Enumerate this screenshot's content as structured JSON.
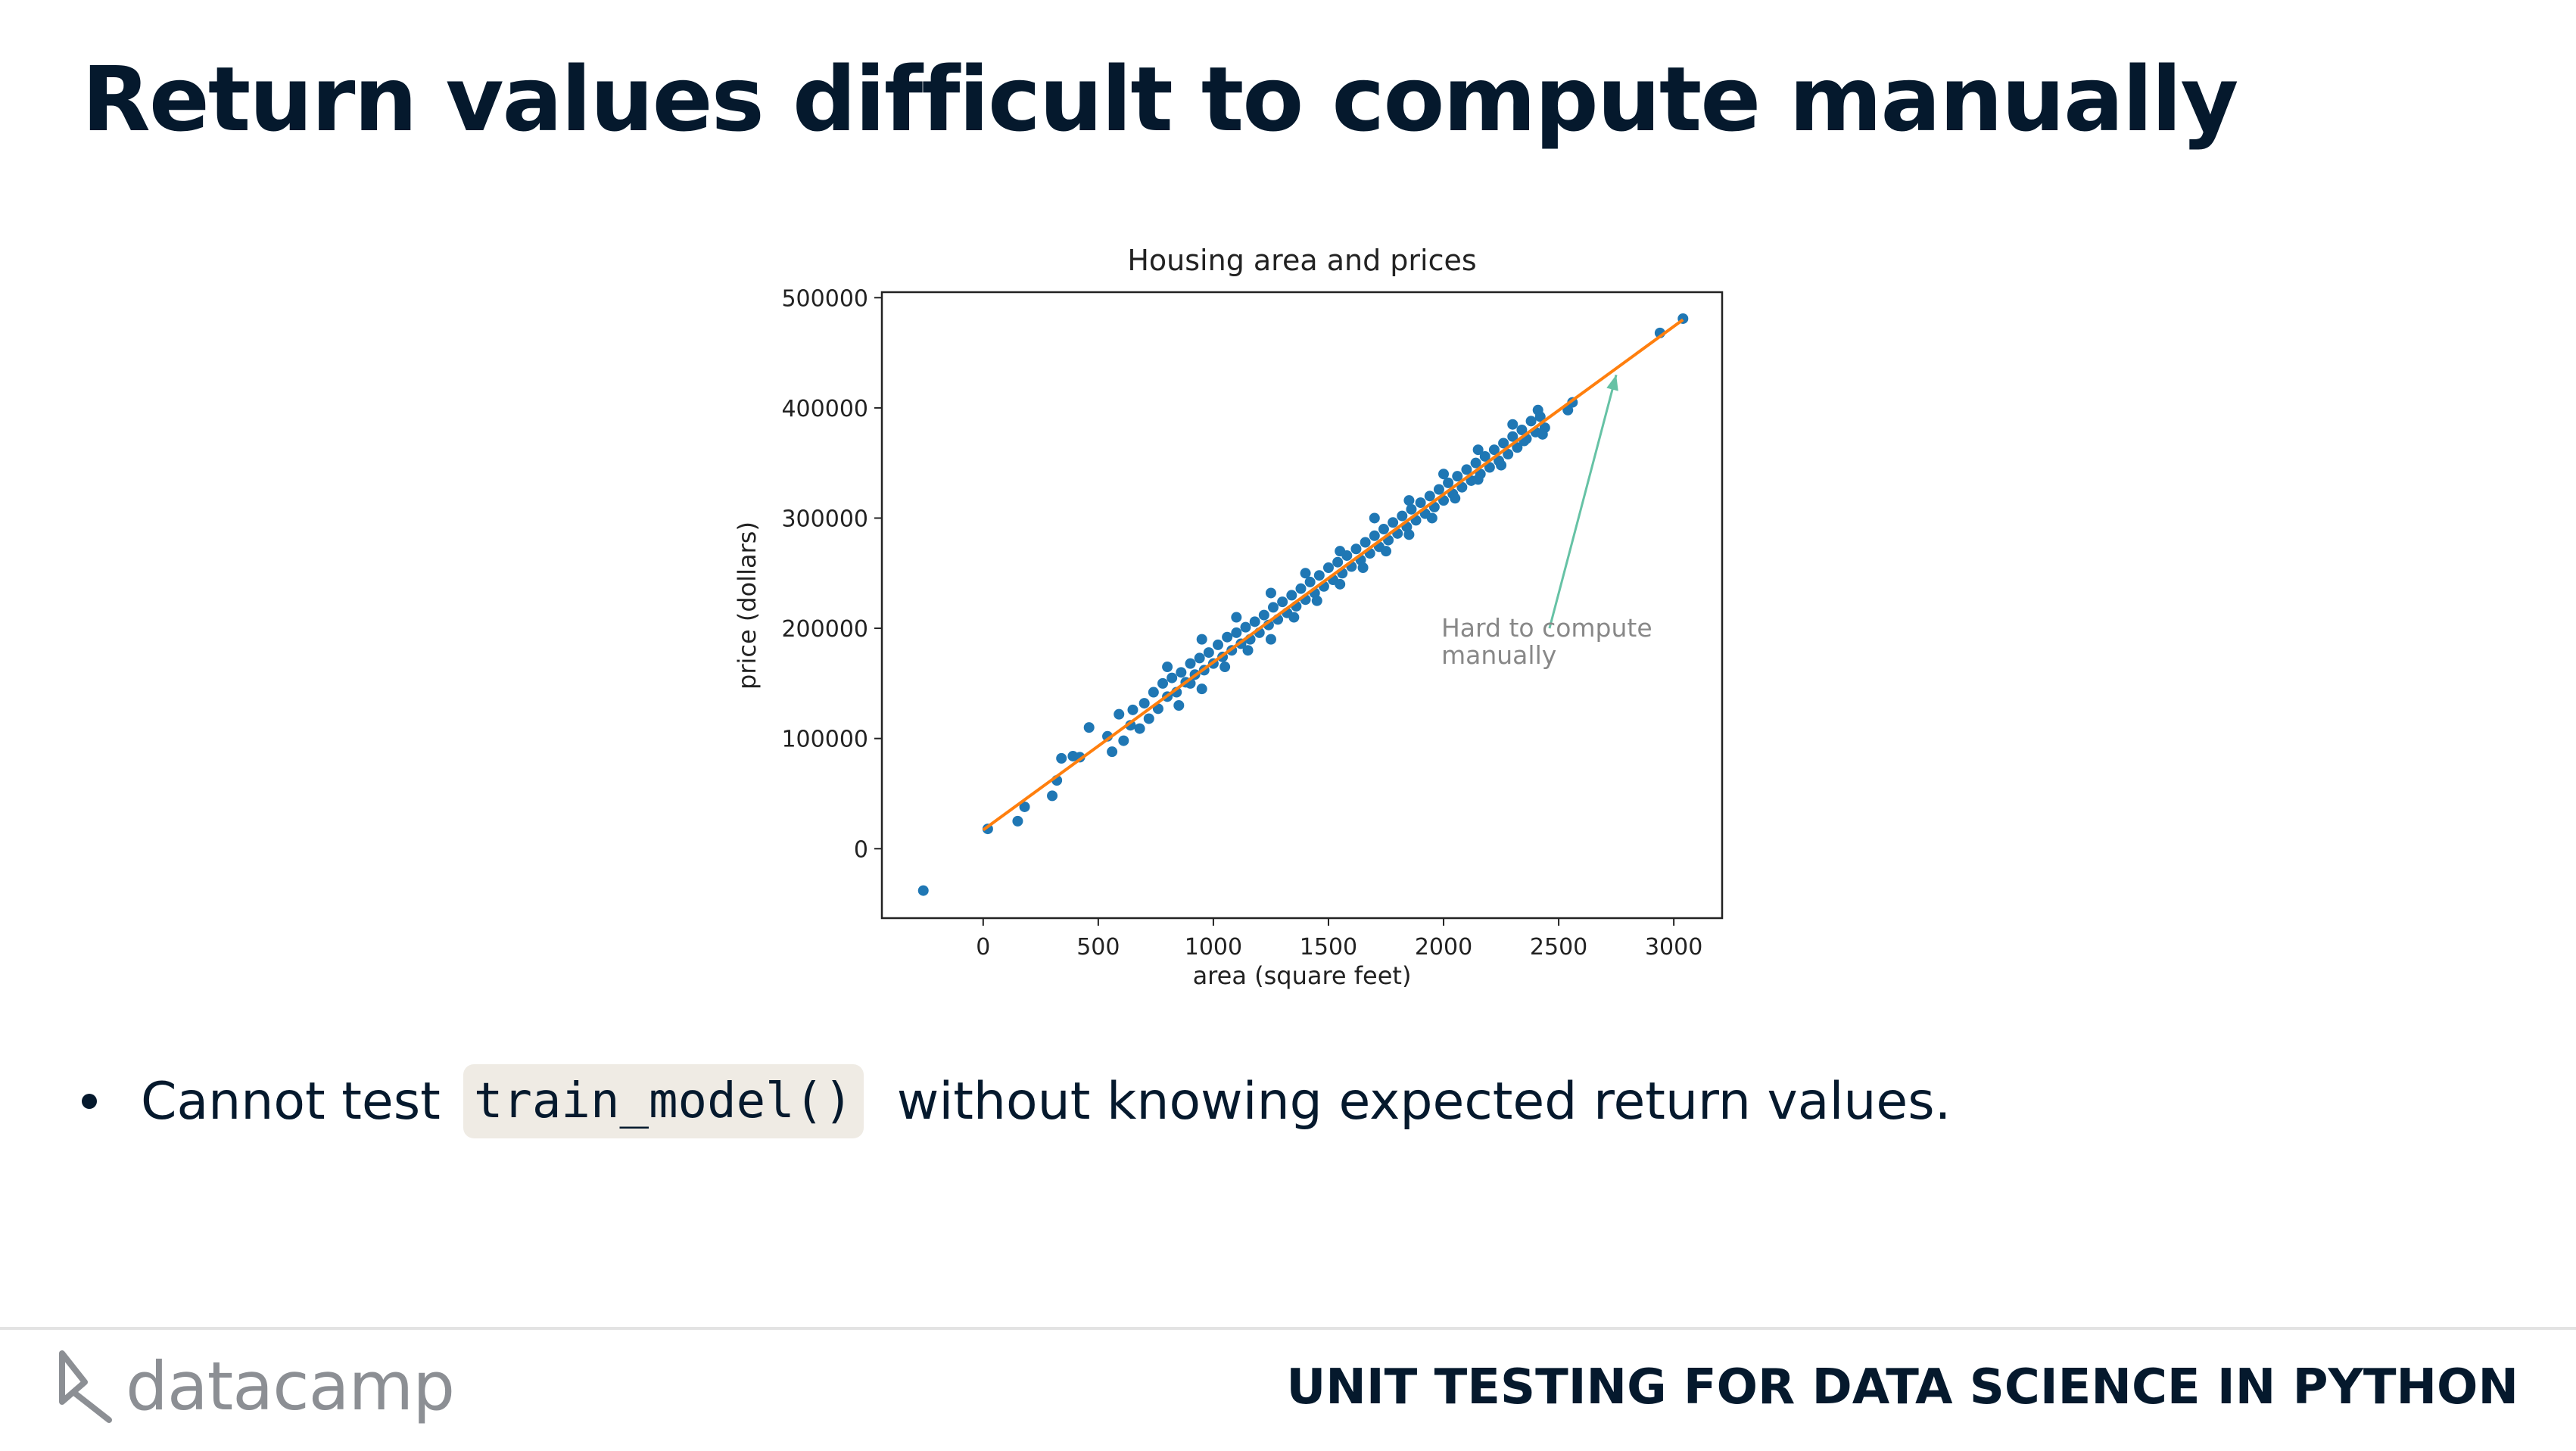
{
  "slide": {
    "title": "Return values difficult to compute manually",
    "bullet_prefix": "Cannot test",
    "bullet_code": "train_model()",
    "bullet_suffix": "without knowing expected return values."
  },
  "footer": {
    "logo_text": "datacamp",
    "course_name": "UNIT TESTING FOR DATA SCIENCE IN PYTHON"
  },
  "colors": {
    "text": "#05192d",
    "scatter": "#1f77b4",
    "fit_line": "#ff7f0e",
    "arrow": "#66c2a5",
    "code_bg": "#efebe4"
  },
  "chart_data": {
    "type": "scatter",
    "title": "Housing area and prices",
    "xlabel": "area (square feet)",
    "ylabel": "price (dollars)",
    "xlim": [
      -440,
      3210
    ],
    "ylim": [
      -63000,
      505000
    ],
    "xticks": [
      0,
      500,
      1000,
      1500,
      2000,
      2500,
      3000
    ],
    "yticks": [
      0,
      100000,
      200000,
      300000,
      400000,
      500000
    ],
    "grid": false,
    "fit_line": {
      "x": [
        0,
        3040
      ],
      "y": [
        17000,
        480000
      ]
    },
    "annotation": {
      "text_lines": [
        "Hard to compute",
        "manually"
      ],
      "text_xy": [
        1990,
        165000
      ],
      "arrow_to": [
        2750,
        430000
      ]
    },
    "series": [
      {
        "points": [
          [
            -260,
            -38000
          ],
          [
            20,
            18000
          ],
          [
            150,
            25000
          ],
          [
            180,
            38000
          ],
          [
            300,
            48000
          ],
          [
            320,
            62000
          ],
          [
            340,
            82000
          ],
          [
            390,
            84000
          ],
          [
            420,
            83000
          ],
          [
            460,
            110000
          ],
          [
            540,
            102000
          ],
          [
            560,
            88000
          ],
          [
            590,
            122000
          ],
          [
            610,
            98000
          ],
          [
            640,
            112000
          ],
          [
            650,
            126000
          ],
          [
            680,
            109000
          ],
          [
            700,
            132000
          ],
          [
            720,
            118000
          ],
          [
            740,
            142000
          ],
          [
            760,
            127000
          ],
          [
            780,
            150000
          ],
          [
            800,
            138000
          ],
          [
            820,
            155000
          ],
          [
            840,
            142000
          ],
          [
            860,
            160000
          ],
          [
            880,
            151000
          ],
          [
            900,
            168000
          ],
          [
            920,
            158000
          ],
          [
            940,
            173000
          ],
          [
            960,
            162000
          ],
          [
            980,
            178000
          ],
          [
            1000,
            168000
          ],
          [
            1020,
            185000
          ],
          [
            1040,
            174000
          ],
          [
            1060,
            192000
          ],
          [
            1080,
            180000
          ],
          [
            1100,
            196000
          ],
          [
            1120,
            186000
          ],
          [
            1140,
            201000
          ],
          [
            1160,
            190000
          ],
          [
            1180,
            206000
          ],
          [
            1200,
            196000
          ],
          [
            1220,
            212000
          ],
          [
            1240,
            203000
          ],
          [
            1260,
            219000
          ],
          [
            1280,
            208000
          ],
          [
            1300,
            224000
          ],
          [
            1320,
            214000
          ],
          [
            1340,
            230000
          ],
          [
            1360,
            220000
          ],
          [
            1380,
            236000
          ],
          [
            1400,
            226000
          ],
          [
            1420,
            242000
          ],
          [
            1440,
            232000
          ],
          [
            1460,
            248000
          ],
          [
            1480,
            238000
          ],
          [
            1500,
            255000
          ],
          [
            1520,
            244000
          ],
          [
            1540,
            260000
          ],
          [
            1560,
            250000
          ],
          [
            1580,
            266000
          ],
          [
            1600,
            256000
          ],
          [
            1620,
            272000
          ],
          [
            1640,
            262000
          ],
          [
            1660,
            278000
          ],
          [
            1680,
            268000
          ],
          [
            1700,
            284000
          ],
          [
            1720,
            274000
          ],
          [
            1740,
            290000
          ],
          [
            1760,
            280000
          ],
          [
            1780,
            296000
          ],
          [
            1800,
            286000
          ],
          [
            1820,
            302000
          ],
          [
            1840,
            292000
          ],
          [
            1860,
            308000
          ],
          [
            1880,
            298000
          ],
          [
            1900,
            314000
          ],
          [
            1920,
            304000
          ],
          [
            1940,
            320000
          ],
          [
            1960,
            310000
          ],
          [
            1980,
            326000
          ],
          [
            2000,
            316000
          ],
          [
            2020,
            332000
          ],
          [
            2040,
            322000
          ],
          [
            2060,
            338000
          ],
          [
            2080,
            328000
          ],
          [
            2100,
            344000
          ],
          [
            2120,
            334000
          ],
          [
            2140,
            350000
          ],
          [
            2160,
            340000
          ],
          [
            2180,
            356000
          ],
          [
            2200,
            346000
          ],
          [
            2220,
            362000
          ],
          [
            2240,
            352000
          ],
          [
            2260,
            368000
          ],
          [
            2280,
            358000
          ],
          [
            2300,
            374000
          ],
          [
            2320,
            364000
          ],
          [
            2340,
            380000
          ],
          [
            2360,
            372000
          ],
          [
            2380,
            388000
          ],
          [
            2400,
            378000
          ],
          [
            2420,
            392000
          ],
          [
            2440,
            382000
          ],
          [
            850,
            130000
          ],
          [
            900,
            150000
          ],
          [
            950,
            145000
          ],
          [
            1050,
            165000
          ],
          [
            1150,
            180000
          ],
          [
            1250,
            190000
          ],
          [
            1350,
            210000
          ],
          [
            1450,
            225000
          ],
          [
            1550,
            240000
          ],
          [
            1650,
            255000
          ],
          [
            1750,
            270000
          ],
          [
            1850,
            285000
          ],
          [
            1950,
            300000
          ],
          [
            2050,
            318000
          ],
          [
            2150,
            335000
          ],
          [
            2250,
            348000
          ],
          [
            2350,
            370000
          ],
          [
            2430,
            376000
          ],
          [
            800,
            165000
          ],
          [
            950,
            190000
          ],
          [
            1100,
            210000
          ],
          [
            1250,
            232000
          ],
          [
            1400,
            250000
          ],
          [
            1550,
            270000
          ],
          [
            1700,
            300000
          ],
          [
            1850,
            316000
          ],
          [
            2000,
            340000
          ],
          [
            2150,
            362000
          ],
          [
            2300,
            385000
          ],
          [
            2410,
            398000
          ],
          [
            2540,
            398000
          ],
          [
            2560,
            405000
          ],
          [
            2940,
            468000
          ],
          [
            3040,
            481000
          ]
        ]
      }
    ]
  }
}
